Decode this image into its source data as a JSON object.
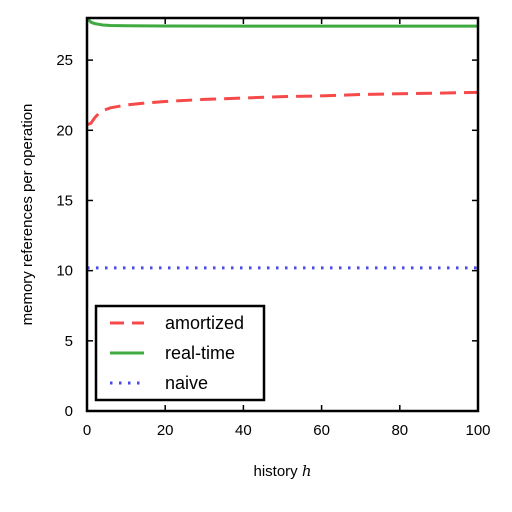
{
  "chart_data": {
    "type": "line",
    "xlabel": "history",
    "xlabel_var": "h",
    "ylabel": "memory references per operation",
    "xlim": [
      0,
      100
    ],
    "ylim": [
      0,
      28
    ],
    "xticks": [
      0,
      20,
      40,
      60,
      80,
      100
    ],
    "yticks": [
      0,
      5,
      10,
      15,
      20,
      25
    ],
    "grid": false,
    "legend_position": "lower-left",
    "series": [
      {
        "name": "amortized",
        "color": "#f64a4a",
        "style": "dashed",
        "x": [
          0,
          1,
          2,
          3,
          4,
          5,
          6,
          8,
          10,
          15,
          20,
          30,
          40,
          50,
          60,
          70,
          80,
          90,
          100
        ],
        "y": [
          20.4,
          20.5,
          20.9,
          21.2,
          21.4,
          21.5,
          21.6,
          21.7,
          21.8,
          21.95,
          22.05,
          22.2,
          22.3,
          22.4,
          22.45,
          22.55,
          22.6,
          22.65,
          22.7
        ]
      },
      {
        "name": "real-time",
        "color": "#3faa3f",
        "style": "solid",
        "x": [
          0,
          0.5,
          1,
          2,
          3,
          4,
          6,
          10,
          20,
          40,
          60,
          80,
          100
        ],
        "y": [
          28.0,
          27.85,
          27.7,
          27.6,
          27.55,
          27.5,
          27.47,
          27.45,
          27.43,
          27.42,
          27.42,
          27.42,
          27.42
        ]
      },
      {
        "name": "naive",
        "color": "#4a4ae8",
        "style": "dotted",
        "x": [
          0,
          100
        ],
        "y": [
          10.2,
          10.2
        ]
      }
    ]
  }
}
